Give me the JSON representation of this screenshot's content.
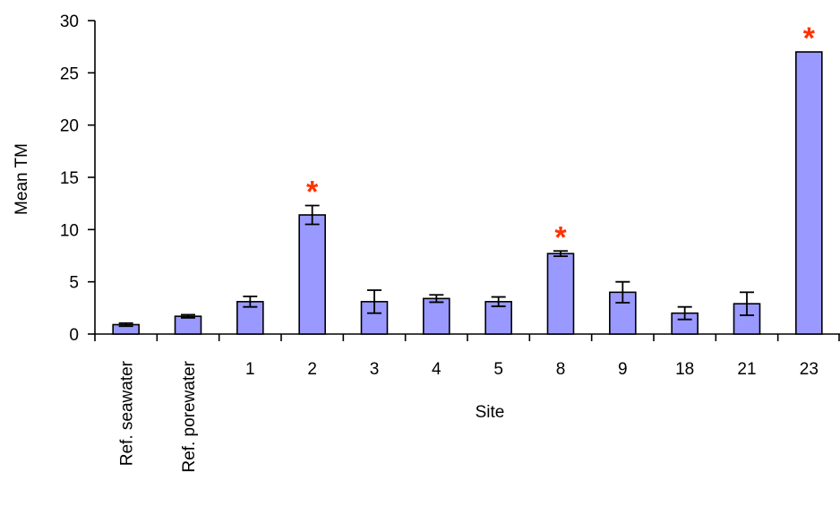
{
  "chart_data": {
    "type": "bar",
    "title": "",
    "xlabel": "Site",
    "ylabel": "Mean TM",
    "ylim": [
      0,
      30
    ],
    "yticks": [
      0,
      5,
      10,
      15,
      20,
      25,
      30
    ],
    "grid": false,
    "legend": "none",
    "categories": [
      "Ref. seawater",
      "Ref. porewater",
      "1",
      "2",
      "3",
      "4",
      "5",
      "8",
      "9",
      "18",
      "21",
      "23"
    ],
    "rotated_categories": [
      "Ref. seawater",
      "Ref. porewater"
    ],
    "values": [
      0.9,
      1.7,
      3.1,
      11.4,
      3.1,
      3.4,
      3.1,
      7.7,
      4.0,
      2.0,
      2.9,
      27.0
    ],
    "errors": [
      0.15,
      0.15,
      0.5,
      0.9,
      1.1,
      0.35,
      0.45,
      0.25,
      1.0,
      0.6,
      1.1,
      0.0
    ],
    "significance": {
      "symbol": "*",
      "categories": [
        "2",
        "8",
        "23"
      ]
    },
    "colors": {
      "bar_fill": "#9999ff",
      "bar_stroke": "#000000",
      "marker": "#ff3300",
      "axis": "#000000"
    }
  }
}
